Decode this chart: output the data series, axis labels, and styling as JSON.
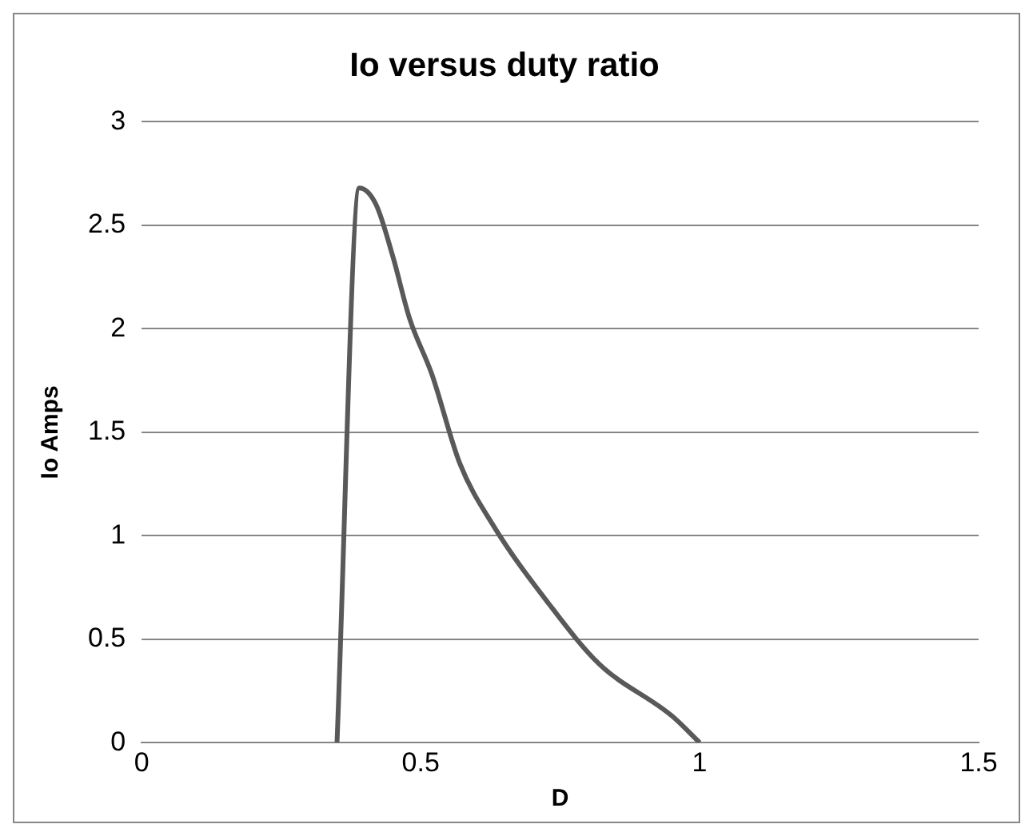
{
  "chart_data": {
    "type": "line",
    "title": "Io versus duty ratio",
    "xlabel": "D",
    "ylabel": "Io Amps",
    "series": [
      {
        "color": "#595959",
        "x": [
          0.35,
          0.39,
          0.42,
          0.45,
          0.48,
          0.52,
          0.57,
          0.63,
          0.73,
          0.82,
          0.95,
          1.0
        ],
        "values": [
          0,
          2.68,
          2.6,
          2.35,
          2.05,
          1.78,
          1.35,
          1.05,
          0.67,
          0.38,
          0.13,
          0
        ]
      }
    ],
    "xlim": [
      0,
      1.5
    ],
    "xticks": [
      0,
      0.5,
      1,
      1.5
    ],
    "ylim": [
      0,
      3
    ],
    "yticks": [
      0,
      0.5,
      1,
      1.5,
      2,
      2.5,
      3
    ],
    "grid": "y",
    "legend": false,
    "marker": "none",
    "line_style": "solid"
  }
}
